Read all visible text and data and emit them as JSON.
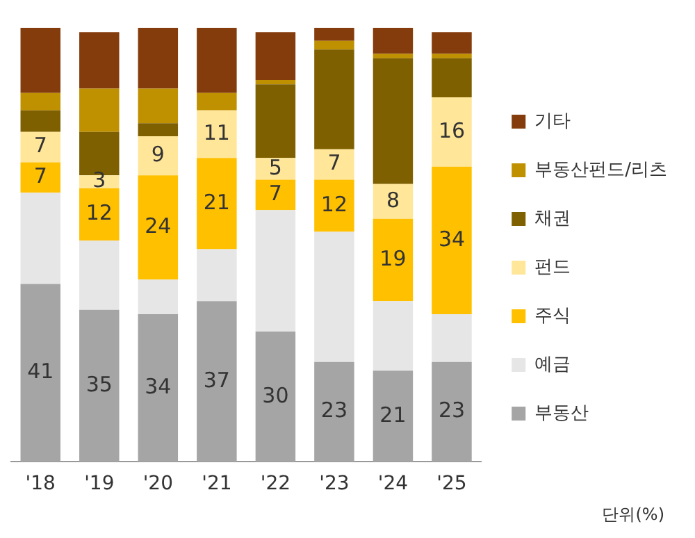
{
  "chart_data": {
    "type": "bar",
    "stacked": true,
    "categories": [
      "'18",
      "'19",
      "'20",
      "'21",
      "'22",
      "'23",
      "'24",
      "'25"
    ],
    "series": [
      {
        "name": "부동산",
        "color": "#a5a5a5",
        "values": [
          41,
          35,
          34,
          37,
          30,
          23,
          21,
          23
        ],
        "value_labels": [
          "41",
          "35",
          "34",
          "37",
          "30",
          "23",
          "21",
          "23"
        ]
      },
      {
        "name": "예금",
        "color": "#e6e6e6",
        "values": [
          21,
          16,
          8,
          12,
          28,
          30,
          16,
          11
        ]
      },
      {
        "name": "주식",
        "color": "#ffc000",
        "values": [
          7,
          12,
          24,
          21,
          7,
          12,
          19,
          34
        ],
        "value_labels": [
          "7",
          "12",
          "24",
          "21",
          "7",
          "12",
          "19",
          "34"
        ]
      },
      {
        "name": "펀드",
        "color": "#ffe699",
        "values": [
          7,
          3,
          9,
          11,
          5,
          7,
          8,
          16
        ],
        "value_labels": [
          "7",
          "3",
          "9",
          "11",
          "5",
          "7",
          "8",
          "16"
        ]
      },
      {
        "name": "채권",
        "color": "#7f6000",
        "values": [
          5,
          10,
          3,
          0,
          17,
          23,
          29,
          9
        ]
      },
      {
        "name": "부동산펀드/리츠",
        "color": "#bf9000",
        "values": [
          4,
          10,
          8,
          4,
          1,
          2,
          1,
          1
        ]
      },
      {
        "name": "기타",
        "color": "#843c0c",
        "values": [
          15,
          13,
          14,
          15,
          11,
          3,
          6,
          5
        ]
      }
    ],
    "ylim": [
      0,
      100
    ],
    "tick_labels": "x",
    "grid": false,
    "legend": "right",
    "annotations": [
      "단위(%)"
    ]
  }
}
